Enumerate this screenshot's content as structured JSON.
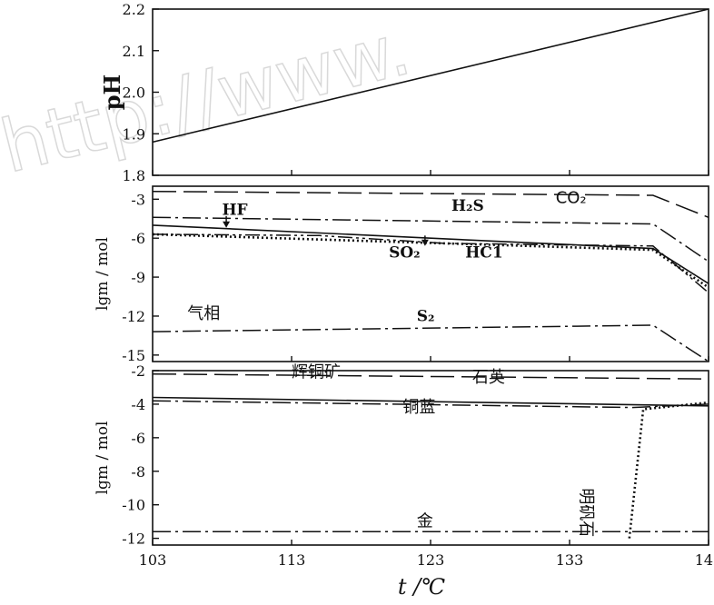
{
  "watermark": "http://www.",
  "chart_data": [
    {
      "type": "line",
      "ylabel": "pH",
      "ylim": [
        1.8,
        2.2
      ],
      "yticks": [
        "1.8",
        "1.9",
        "2.0",
        "2.1",
        "2.2"
      ],
      "xlim": [
        103,
        143
      ],
      "series": [
        {
          "x": [
            103,
            143
          ],
          "y": [
            1.88,
            2.2
          ],
          "style": "solid"
        }
      ],
      "annotations": []
    },
    {
      "type": "line",
      "ylabel": "lgm / mol",
      "ylim": [
        -15.5,
        -2
      ],
      "yticks": [
        "-3",
        "-6",
        "-9",
        "-12",
        "-15"
      ],
      "xlim": [
        103,
        143
      ],
      "series": [
        {
          "name": "CO₂",
          "style": "longdash",
          "x": [
            103,
            139,
            143
          ],
          "y": [
            -2.4,
            -2.7,
            -4.4
          ]
        },
        {
          "name": "H₂S",
          "style": "dashdot",
          "x": [
            103,
            139,
            143
          ],
          "y": [
            -4.4,
            -4.9,
            -7.8
          ]
        },
        {
          "name": "HF",
          "style": "solid",
          "x": [
            103,
            139,
            143
          ],
          "y": [
            -5.0,
            -6.8,
            -9.5
          ]
        },
        {
          "name": "SO₂",
          "style": "dotted",
          "x": [
            103,
            139,
            143
          ],
          "y": [
            -5.7,
            -6.9,
            -9.8
          ]
        },
        {
          "name": "HC1",
          "style": "dashdotdot",
          "x": [
            103,
            115,
            124,
            139,
            143
          ],
          "y": [
            -5.7,
            -5.8,
            -6.4,
            -6.6,
            -10.2
          ]
        },
        {
          "name": "S₂",
          "style": "dashdot",
          "x": [
            103,
            139,
            143
          ],
          "y": [
            -13.2,
            -12.7,
            -15.5
          ]
        }
      ],
      "annotations": [
        {
          "text": "HF",
          "x": 108,
          "y": -4.2,
          "bold": true
        },
        {
          "text": "H₂S",
          "x": 124.5,
          "y": -3.9,
          "bold": true
        },
        {
          "text": "CO₂",
          "x": 132,
          "y": -3.3,
          "bold": false
        },
        {
          "text": "SO₂",
          "x": 120,
          "y": -7.5,
          "bold": true
        },
        {
          "text": "HC1",
          "x": 125.5,
          "y": -7.5,
          "bold": true
        },
        {
          "text": "气相",
          "x": 105.5,
          "y": -12.2,
          "bold": false
        },
        {
          "text": "S₂",
          "x": 122,
          "y": -12.4,
          "bold": true
        }
      ]
    },
    {
      "type": "line",
      "ylabel": "lgm / mol",
      "ylim": [
        -12.4,
        -2
      ],
      "yticks": [
        "-2",
        "-4",
        "-6",
        "-8",
        "-10",
        "-12"
      ],
      "xlim": [
        103,
        143
      ],
      "xticks": [
        "103",
        "113",
        "123",
        "133",
        "143"
      ],
      "xlabel": "t /℃",
      "series": [
        {
          "name": "石英",
          "style": "longdash",
          "x": [
            103,
            143
          ],
          "y": [
            -2.2,
            -2.5
          ]
        },
        {
          "name": "辉铜矿",
          "style": "solid",
          "x": [
            103,
            143
          ],
          "y": [
            -3.6,
            -4.1
          ]
        },
        {
          "name": "铜蓝",
          "style": "dashdot",
          "x": [
            103,
            137.5,
            143
          ],
          "y": [
            -3.8,
            -4.2,
            -4.0
          ]
        },
        {
          "name": "明矾石",
          "style": "dotted",
          "x": [
            137.3,
            138.3,
            143
          ],
          "y": [
            -12.0,
            -4.3,
            -3.9
          ]
        },
        {
          "name": "金",
          "style": "dashdot",
          "x": [
            103,
            143
          ],
          "y": [
            -11.6,
            -11.6
          ]
        }
      ],
      "annotations": [
        {
          "text": "辉铜矿",
          "x": 113,
          "y": -2.4,
          "bold": false
        },
        {
          "text": "石英",
          "x": 126,
          "y": -2.7,
          "bold": false
        },
        {
          "text": "铜蓝",
          "x": 121,
          "y": -4.5,
          "bold": false
        },
        {
          "text": "明矾石",
          "x": 133.8,
          "y": -9.0,
          "bold": false,
          "vertical": true
        },
        {
          "text": "金",
          "x": 122,
          "y": -11.3,
          "bold": false
        }
      ]
    }
  ]
}
